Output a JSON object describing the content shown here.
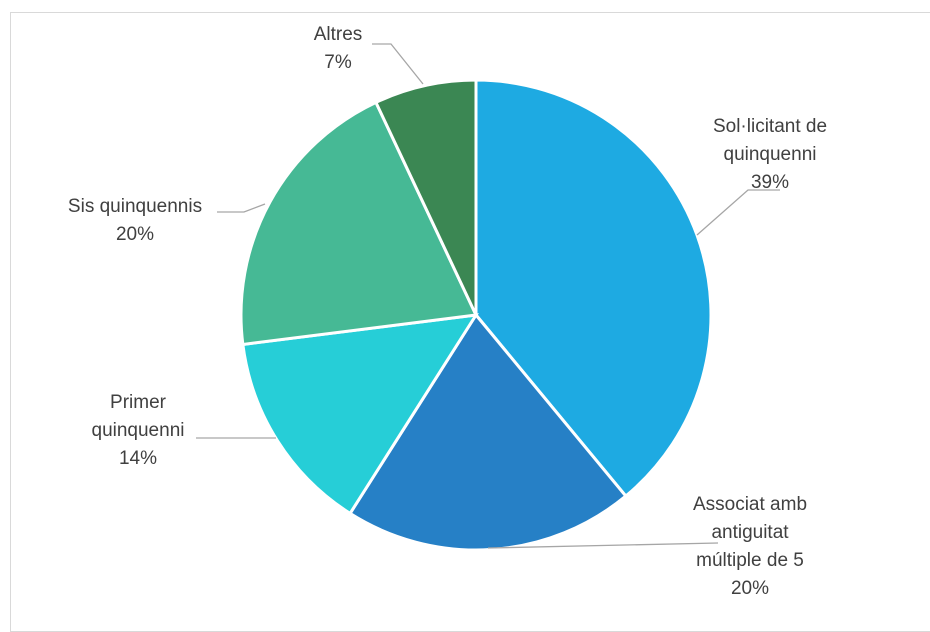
{
  "chart_data": {
    "type": "pie",
    "title": "",
    "slices": [
      {
        "lines": [
          "Sol·licitant de",
          "quinquenni"
        ],
        "value": 39,
        "label": "39%",
        "color": "#1eaae2"
      },
      {
        "lines": [
          "Associat amb",
          "antiguitat",
          "múltiple de 5"
        ],
        "value": 20,
        "label": "20%",
        "color": "#2680c6"
      },
      {
        "lines": [
          "Primer",
          "quinquenni"
        ],
        "value": 14,
        "label": "14%",
        "color": "#26ced7"
      },
      {
        "lines": [
          "Sis quinquennis"
        ],
        "value": 20,
        "label": "20%",
        "color": "#46b995"
      },
      {
        "lines": [
          "Altres"
        ],
        "value": 7,
        "label": "7%",
        "color": "#3b8753"
      }
    ],
    "start_angle_deg": 0,
    "direction": "clockwise",
    "legend": "none",
    "data_labels": "outside-with-leader-lines"
  }
}
